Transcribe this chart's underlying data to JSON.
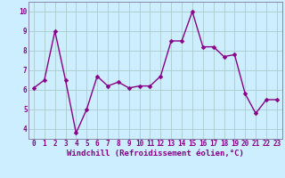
{
  "x": [
    0,
    1,
    2,
    3,
    4,
    5,
    6,
    7,
    8,
    9,
    10,
    11,
    12,
    13,
    14,
    15,
    16,
    17,
    18,
    19,
    20,
    21,
    22,
    23
  ],
  "y": [
    6.1,
    6.5,
    9.0,
    6.5,
    3.8,
    5.0,
    6.7,
    6.2,
    6.4,
    6.1,
    6.2,
    6.2,
    6.7,
    8.5,
    8.5,
    10.0,
    8.2,
    8.2,
    7.7,
    7.8,
    5.8,
    4.8,
    5.5,
    5.5
  ],
  "line_color": "#880088",
  "marker_color": "#880088",
  "bg_color": "#cceeff",
  "grid_color": "#aacccc",
  "xlabel": "Windchill (Refroidissement éolien,°C)",
  "ylim": [
    3.5,
    10.5
  ],
  "xlim": [
    -0.5,
    23.5
  ],
  "yticks": [
    4,
    5,
    6,
    7,
    8,
    9,
    10
  ],
  "xticks": [
    0,
    1,
    2,
    3,
    4,
    5,
    6,
    7,
    8,
    9,
    10,
    11,
    12,
    13,
    14,
    15,
    16,
    17,
    18,
    19,
    20,
    21,
    22,
    23
  ],
  "label_fontsize": 6.5,
  "tick_fontsize": 5.5,
  "line_width": 1.0,
  "marker_size": 2.5,
  "text_color": "#880088",
  "spine_color": "#8888aa"
}
